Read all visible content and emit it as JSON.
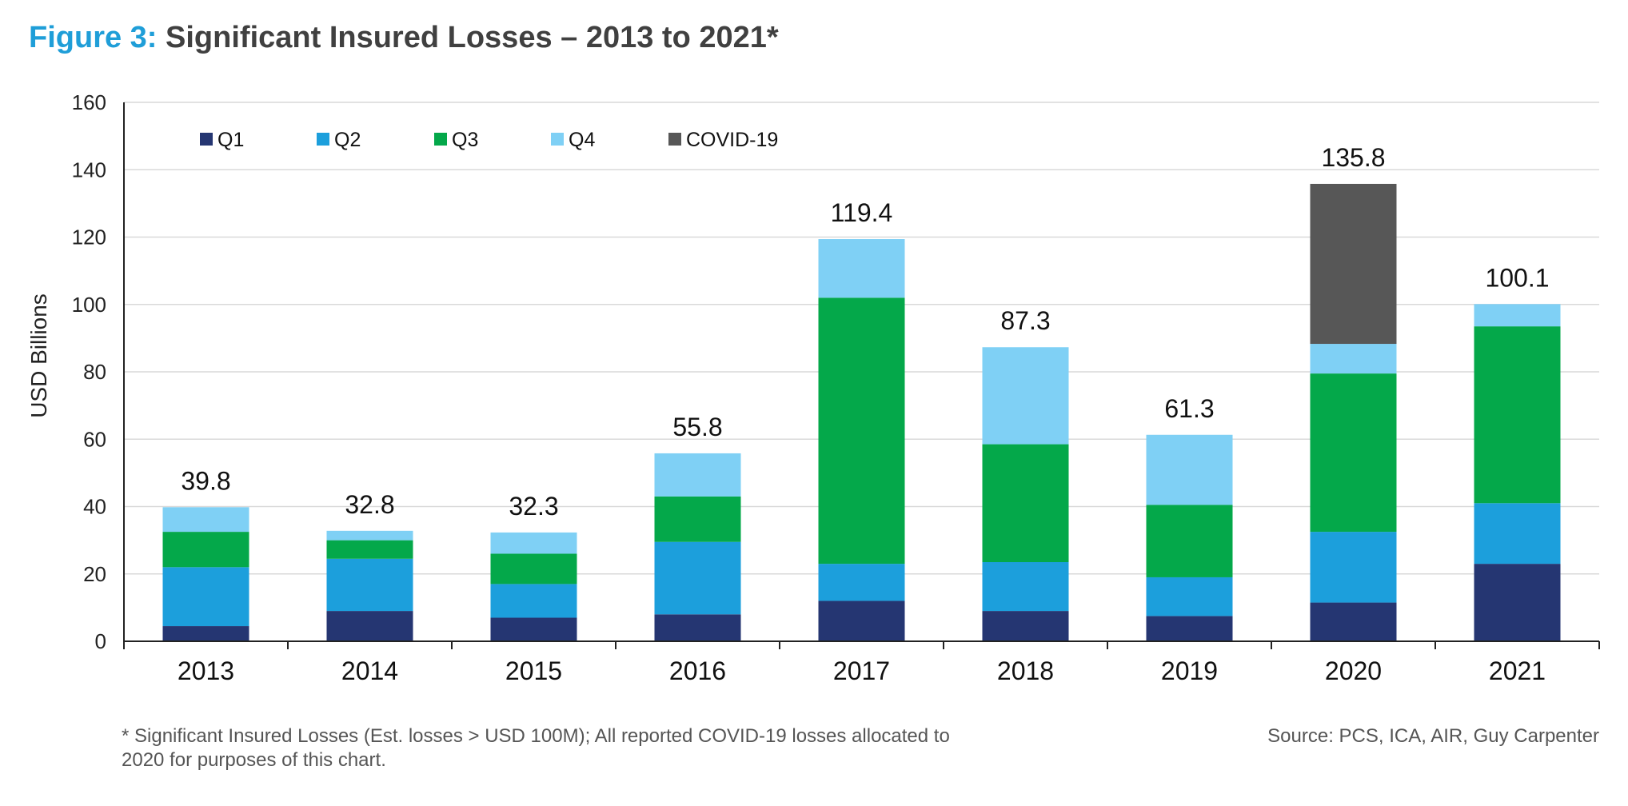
{
  "title": {
    "figure_label": "Figure 3:",
    "text": "Significant Insured Losses – 2013 to 2021*"
  },
  "footnote": "* Significant Insured Losses (Est. losses > USD 100M); All reported COVID-19 losses allocated to 2020 for purposes of this chart.",
  "source": "Source: PCS, ICA, AIR, Guy Carpenter",
  "chart_data": {
    "type": "bar",
    "stacked": true,
    "ylabel": "USD Billions",
    "xlabel": "",
    "ylim": [
      0,
      160
    ],
    "yticks": [
      0,
      20,
      40,
      60,
      80,
      100,
      120,
      140,
      160
    ],
    "grid": true,
    "legend_position": "top-left",
    "categories": [
      "2013",
      "2014",
      "2015",
      "2016",
      "2017",
      "2018",
      "2019",
      "2020",
      "2021"
    ],
    "totals": [
      "39.8",
      "32.8",
      "32.3",
      "55.8",
      "119.4",
      "87.3",
      "61.3",
      "135.8",
      "100.1"
    ],
    "series": [
      {
        "name": "Q1",
        "color": "#253672",
        "values": [
          4.5,
          9.0,
          7.0,
          8.0,
          12.0,
          9.0,
          7.5,
          11.5,
          23.0
        ]
      },
      {
        "name": "Q2",
        "color": "#1c9fdc",
        "values": [
          17.5,
          15.5,
          10.0,
          21.5,
          11.0,
          14.5,
          11.5,
          21.0,
          18.0
        ]
      },
      {
        "name": "Q3",
        "color": "#04a84a",
        "values": [
          10.5,
          5.5,
          9.0,
          13.5,
          79.0,
          35.0,
          21.5,
          47.0,
          52.5
        ]
      },
      {
        "name": "Q4",
        "color": "#7fd0f5",
        "values": [
          7.3,
          2.8,
          6.3,
          12.8,
          17.4,
          28.8,
          20.8,
          8.8,
          6.6
        ]
      },
      {
        "name": "COVID-19",
        "color": "#575757",
        "values": [
          0,
          0,
          0,
          0,
          0,
          0,
          0,
          47.5,
          0
        ]
      }
    ]
  }
}
